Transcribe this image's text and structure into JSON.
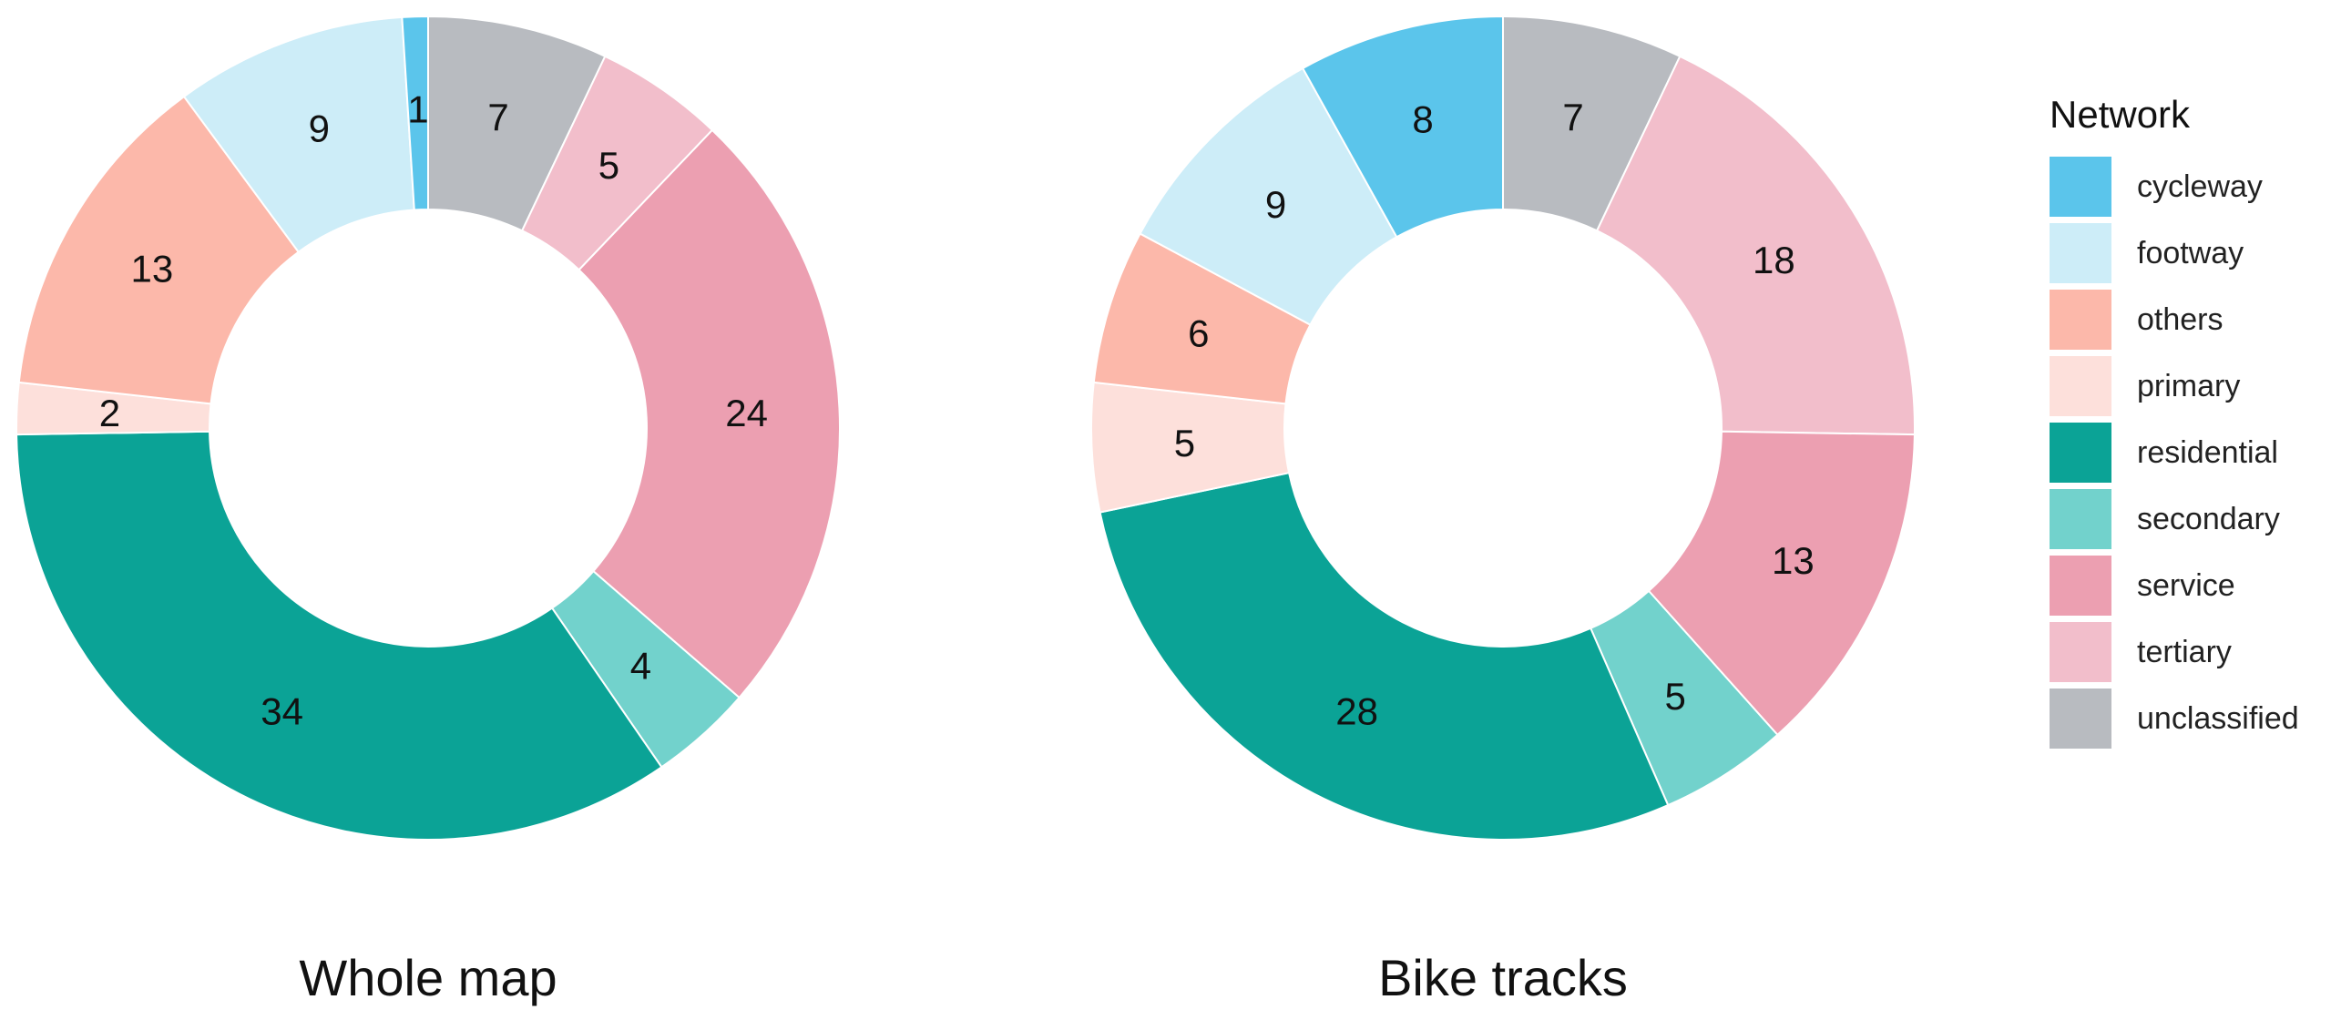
{
  "legend": {
    "title": "Network",
    "items": [
      {
        "label": "cycleway",
        "color": "#5BC5EB"
      },
      {
        "label": "footway",
        "color": "#CDEDF8"
      },
      {
        "label": "others",
        "color": "#FCB8AA"
      },
      {
        "label": "primary",
        "color": "#FDE0DB"
      },
      {
        "label": "residential",
        "color": "#0BA396"
      },
      {
        "label": "secondary",
        "color": "#72D2CC"
      },
      {
        "label": "service",
        "color": "#EC9FB1"
      },
      {
        "label": "tertiary",
        "color": "#F2BECB"
      },
      {
        "label": "unclassified",
        "color": "#B8BBC0"
      }
    ]
  },
  "chart_data": [
    {
      "type": "pie",
      "title": "Whole map",
      "categories": [
        "unclassified",
        "tertiary",
        "service",
        "secondary",
        "residential",
        "primary",
        "others",
        "footway",
        "cycleway"
      ],
      "values": [
        7,
        5,
        24,
        4,
        34,
        2,
        13,
        9,
        1
      ],
      "labels": [
        "7",
        "5",
        "24",
        "4",
        "34",
        "2",
        "13",
        "9",
        "1"
      ],
      "donut": true
    },
    {
      "type": "pie",
      "title": "Bike tracks",
      "categories": [
        "unclassified",
        "tertiary",
        "service",
        "secondary",
        "residential",
        "primary",
        "others",
        "footway",
        "cycleway"
      ],
      "values": [
        7,
        18,
        13,
        5,
        28,
        5,
        6,
        9,
        8
      ],
      "labels": [
        "7",
        "18",
        "13",
        "5",
        "28",
        "5",
        "6",
        "9",
        "8"
      ],
      "donut": true
    }
  ]
}
